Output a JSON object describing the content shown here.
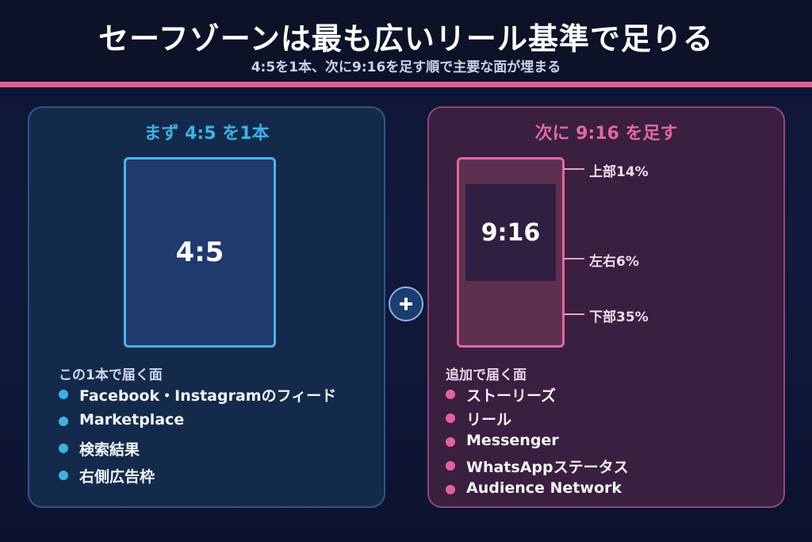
{
  "header": {
    "title": "セーフゾーンは最も広いリール基準で足りる",
    "subtitle": "4:5を1本、次に9:16を足す順で主要な面が埋まる"
  },
  "left_panel": {
    "heading": "まず 4:5 を1本",
    "frame_label": "4:5",
    "list_title": "この1本で届く面",
    "items": [
      "Facebook・Instagramのフィード",
      "Marketplace",
      "検索結果",
      "右側広告枠"
    ]
  },
  "right_panel": {
    "heading": "次に 9:16 を足す",
    "frame_label": "9:16",
    "margins": {
      "top": "上部14%",
      "sides": "左右6%",
      "bottom": "下部35%"
    },
    "list_title": "追加で届く面",
    "items": [
      "ストーリーズ",
      "リール",
      "Messenger",
      "WhatsAppステータス",
      "Audience Network"
    ]
  },
  "plus_icon": "plus-icon",
  "colors": {
    "accent_blue": "#3db2e6",
    "accent_pink": "#e0649a",
    "rule": "#d9628f"
  }
}
